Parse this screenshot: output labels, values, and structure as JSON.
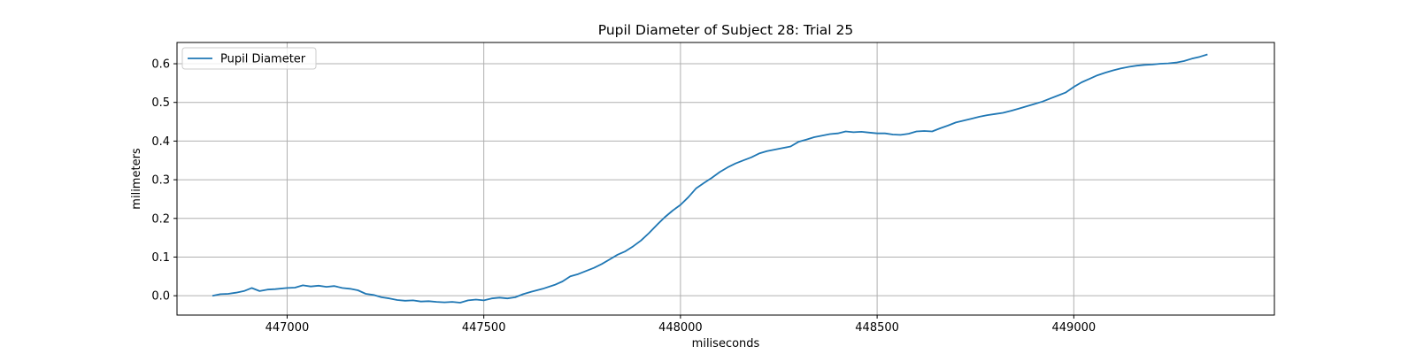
{
  "chart_data": {
    "type": "line",
    "title": "Pupil Diameter of Subject 28: Trial 25",
    "xlabel": "miliseconds",
    "ylabel": "milimeters",
    "xlim": [
      446720,
      449510
    ],
    "ylim": [
      -0.05,
      0.655
    ],
    "xticks": [
      447000,
      447500,
      448000,
      448500,
      449000
    ],
    "xtick_labels": [
      "447000",
      "447500",
      "448000",
      "448500",
      "449000"
    ],
    "yticks": [
      0.0,
      0.1,
      0.2,
      0.3,
      0.4,
      0.5,
      0.6
    ],
    "ytick_labels": [
      "0.0",
      "0.1",
      "0.2",
      "0.3",
      "0.4",
      "0.5",
      "0.6"
    ],
    "grid": true,
    "legend_position": "upper-left",
    "color": "#1f77b4",
    "series": [
      {
        "name": "Pupil Diameter",
        "x": [
          446810,
          446830,
          446850,
          446870,
          446890,
          446910,
          446930,
          446950,
          446970,
          447000,
          447020,
          447040,
          447060,
          447080,
          447100,
          447120,
          447140,
          447160,
          447180,
          447200,
          447220,
          447240,
          447260,
          447280,
          447300,
          447320,
          447340,
          447360,
          447380,
          447400,
          447420,
          447440,
          447460,
          447480,
          447500,
          447520,
          447540,
          447560,
          447580,
          447600,
          447620,
          447650,
          447680,
          447700,
          447720,
          447740,
          447760,
          447780,
          447800,
          447820,
          447840,
          447860,
          447880,
          447900,
          447920,
          447940,
          447960,
          447980,
          448000,
          448020,
          448040,
          448060,
          448080,
          448100,
          448120,
          448140,
          448160,
          448180,
          448200,
          448220,
          448240,
          448260,
          448280,
          448300,
          448320,
          448340,
          448360,
          448380,
          448400,
          448420,
          448440,
          448460,
          448480,
          448500,
          448520,
          448540,
          448560,
          448580,
          448600,
          448620,
          448640,
          448660,
          448680,
          448700,
          448720,
          448740,
          448760,
          448780,
          448800,
          448820,
          448840,
          448860,
          448880,
          448900,
          448920,
          448940,
          448960,
          448980,
          449000,
          449020,
          449040,
          449060,
          449080,
          449100,
          449120,
          449140,
          449160,
          449180,
          449200,
          449220,
          449240,
          449260,
          449280,
          449300,
          449320,
          449340
        ],
        "y": [
          0.0,
          0.004,
          0.005,
          0.008,
          0.012,
          0.02,
          0.012,
          0.016,
          0.017,
          0.02,
          0.021,
          0.027,
          0.024,
          0.026,
          0.023,
          0.025,
          0.02,
          0.018,
          0.014,
          0.005,
          0.002,
          -0.004,
          -0.007,
          -0.011,
          -0.013,
          -0.012,
          -0.015,
          -0.014,
          -0.016,
          -0.017,
          -0.016,
          -0.018,
          -0.012,
          -0.01,
          -0.012,
          -0.007,
          -0.005,
          -0.007,
          -0.004,
          0.004,
          0.01,
          0.018,
          0.028,
          0.037,
          0.05,
          0.056,
          0.064,
          0.072,
          0.082,
          0.094,
          0.106,
          0.115,
          0.128,
          0.143,
          0.162,
          0.183,
          0.203,
          0.22,
          0.235,
          0.255,
          0.278,
          0.292,
          0.305,
          0.32,
          0.332,
          0.342,
          0.35,
          0.358,
          0.368,
          0.374,
          0.378,
          0.382,
          0.386,
          0.398,
          0.404,
          0.41,
          0.414,
          0.418,
          0.42,
          0.425,
          0.423,
          0.424,
          0.422,
          0.42,
          0.42,
          0.417,
          0.416,
          0.419,
          0.425,
          0.426,
          0.425,
          0.433,
          0.44,
          0.448,
          0.453,
          0.458,
          0.463,
          0.467,
          0.47,
          0.473,
          0.478,
          0.484,
          0.49,
          0.496,
          0.502,
          0.51,
          0.518,
          0.526,
          0.54,
          0.552,
          0.561,
          0.57,
          0.577,
          0.583,
          0.588,
          0.592,
          0.595,
          0.597,
          0.598,
          0.6,
          0.601,
          0.603,
          0.607,
          0.613,
          0.618,
          0.624
        ]
      }
    ]
  }
}
